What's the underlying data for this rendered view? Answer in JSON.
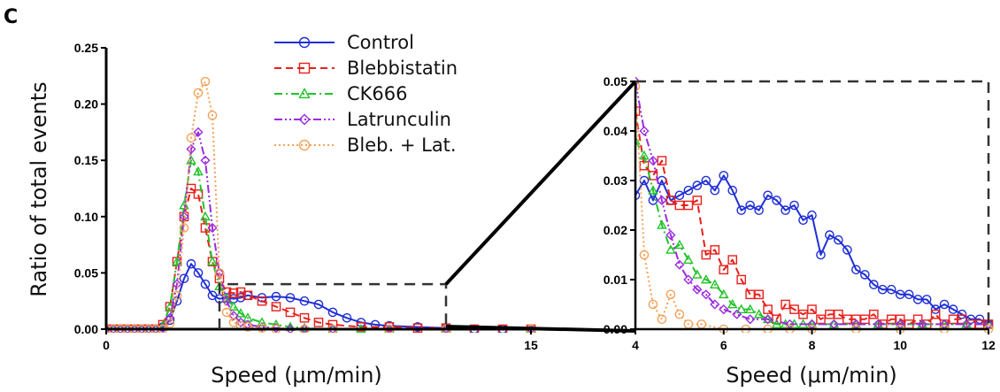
{
  "panel_label": "C",
  "legend": [
    {
      "name": "Control",
      "color": "#1f2fd6",
      "marker": "circle",
      "dash": "solid"
    },
    {
      "name": "Blebbistatin",
      "color": "#e8201b",
      "marker": "square",
      "dash": "dashed"
    },
    {
      "name": "CK666",
      "color": "#22c32a",
      "marker": "triangle",
      "dash": "dashdot"
    },
    {
      "name": "Latrunculin",
      "color": "#9b2be0",
      "marker": "diamond",
      "dash": "dashdotdot"
    },
    {
      "name": "Bleb. + Lat.",
      "color": "#f4a259",
      "marker": "circle",
      "dash": "dotted"
    }
  ],
  "chart_data": [
    {
      "type": "scatter",
      "title": "",
      "xlabel": "Speed (μm/min)",
      "ylabel": "Ratio of total events",
      "xlim": [
        0,
        15
      ],
      "ylim": [
        0,
        0.25
      ],
      "xticks": [
        {
          "v": 0,
          "label": "0"
        },
        {
          "v": 15,
          "label": "15"
        }
      ],
      "yticks": [
        {
          "v": 0,
          "label": "0.00"
        },
        {
          "v": 0.05,
          "label": "0.05"
        },
        {
          "v": 0.1,
          "label": "0.10"
        },
        {
          "v": 0.15,
          "label": "0.15"
        },
        {
          "v": 0.2,
          "label": "0.20"
        },
        {
          "v": 0.25,
          "label": "0.25"
        }
      ],
      "grid": false,
      "legend_position": "top-center",
      "zoom_box": {
        "x": [
          4,
          12
        ],
        "y": [
          0,
          0.04
        ]
      },
      "series": [
        {
          "name": "Control",
          "x": [
            0,
            0.25,
            0.5,
            0.75,
            1,
            1.25,
            1.5,
            1.75,
            2,
            2.25,
            2.5,
            2.75,
            3,
            3.25,
            3.5,
            3.75,
            4,
            4.25,
            4.5,
            4.75,
            5,
            5.5,
            6,
            6.5,
            7,
            7.5,
            8,
            8.5,
            9,
            9.5,
            10,
            11,
            12,
            13,
            14,
            15
          ],
          "y": [
            0,
            0,
            0,
            0,
            0,
            0,
            0,
            0,
            0.002,
            0.008,
            0.025,
            0.045,
            0.058,
            0.05,
            0.04,
            0.03,
            0.027,
            0.028,
            0.027,
            0.028,
            0.03,
            0.028,
            0.029,
            0.028,
            0.025,
            0.022,
            0.015,
            0.01,
            0.006,
            0.004,
            0.003,
            0.002,
            0.001,
            0,
            0,
            0
          ]
        },
        {
          "name": "Blebbistatin",
          "x": [
            0,
            0.25,
            0.5,
            0.75,
            1,
            1.25,
            1.5,
            1.75,
            2,
            2.25,
            2.5,
            2.75,
            3,
            3.25,
            3.5,
            3.75,
            4,
            4.25,
            4.5,
            4.75,
            5,
            5.5,
            6,
            6.5,
            7,
            7.5,
            8,
            9,
            10,
            11,
            12,
            13,
            14,
            15
          ],
          "y": [
            0,
            0,
            0,
            0,
            0,
            0,
            0,
            0,
            0.004,
            0.02,
            0.06,
            0.1,
            0.125,
            0.12,
            0.09,
            0.06,
            0.045,
            0.033,
            0.032,
            0.033,
            0.03,
            0.025,
            0.02,
            0.015,
            0.01,
            0.006,
            0.004,
            0.002,
            0.002,
            0.001,
            0.001,
            0,
            0,
            0
          ]
        },
        {
          "name": "CK666",
          "x": [
            0,
            0.25,
            0.5,
            0.75,
            1,
            1.25,
            1.5,
            1.75,
            2,
            2.25,
            2.5,
            2.75,
            3,
            3.25,
            3.5,
            3.75,
            4,
            4.25,
            4.5,
            4.75,
            5,
            5.5,
            6,
            6.5,
            7,
            8,
            9,
            10,
            12,
            15
          ],
          "y": [
            0,
            0,
            0,
            0,
            0,
            0,
            0,
            0,
            0.003,
            0.02,
            0.06,
            0.11,
            0.15,
            0.14,
            0.1,
            0.06,
            0.038,
            0.027,
            0.02,
            0.014,
            0.01,
            0.006,
            0.004,
            0.002,
            0.001,
            0,
            0,
            0,
            0,
            0
          ]
        },
        {
          "name": "Latrunculin",
          "x": [
            0,
            0.25,
            0.5,
            0.75,
            1,
            1.25,
            1.5,
            1.75,
            2,
            2.25,
            2.5,
            2.75,
            3,
            3.25,
            3.5,
            3.75,
            4,
            4.25,
            4.5,
            4.75,
            5,
            5.5,
            6,
            6.5,
            7,
            8,
            10,
            12,
            15
          ],
          "y": [
            0,
            0,
            0,
            0,
            0,
            0,
            0,
            0,
            0.001,
            0.01,
            0.04,
            0.1,
            0.16,
            0.175,
            0.15,
            0.09,
            0.05,
            0.025,
            0.012,
            0.006,
            0.004,
            0.002,
            0.001,
            0,
            0,
            0,
            0,
            0,
            0
          ]
        },
        {
          "name": "Bleb. + Lat.",
          "x": [
            0,
            0.25,
            0.5,
            0.75,
            1,
            1.25,
            1.5,
            1.75,
            2,
            2.25,
            2.5,
            2.75,
            3,
            3.25,
            3.5,
            3.75,
            4,
            4.25,
            4.5,
            4.75,
            5,
            5.5,
            6,
            7,
            8,
            10,
            12,
            15
          ],
          "y": [
            0,
            0,
            0,
            0,
            0,
            0,
            0,
            0,
            0,
            0.005,
            0.03,
            0.09,
            0.17,
            0.21,
            0.22,
            0.19,
            0.05,
            0.015,
            0.006,
            0.003,
            0.002,
            0.001,
            0,
            0,
            0,
            0,
            0,
            0
          ]
        }
      ]
    },
    {
      "type": "scatter",
      "title": "",
      "xlabel": "Speed (μm/min)",
      "ylabel": "",
      "xlim": [
        4,
        12
      ],
      "ylim": [
        0,
        0.05
      ],
      "xticks": [
        {
          "v": 4,
          "label": "4"
        },
        {
          "v": 6,
          "label": "6"
        },
        {
          "v": 8,
          "label": "8"
        },
        {
          "v": 10,
          "label": "10"
        },
        {
          "v": 12,
          "label": "12"
        }
      ],
      "yticks": [
        {
          "v": 0,
          "label": "0.00"
        },
        {
          "v": 0.01,
          "label": "0.01"
        },
        {
          "v": 0.02,
          "label": "0.02"
        },
        {
          "v": 0.03,
          "label": "0.03"
        },
        {
          "v": 0.04,
          "label": "0.04"
        },
        {
          "v": 0.05,
          "label": "0.05"
        }
      ],
      "grid": false,
      "series": [
        {
          "name": "Control",
          "x": [
            4,
            4.2,
            4.4,
            4.6,
            4.8,
            5,
            5.2,
            5.4,
            5.6,
            5.8,
            6,
            6.2,
            6.4,
            6.6,
            6.8,
            7,
            7.2,
            7.4,
            7.6,
            7.8,
            8,
            8.2,
            8.4,
            8.6,
            8.8,
            9,
            9.2,
            9.4,
            9.6,
            9.8,
            10,
            10.2,
            10.4,
            10.6,
            10.8,
            11,
            11.2,
            11.4,
            11.6,
            11.8,
            12
          ],
          "y": [
            0.027,
            0.03,
            0.026,
            0.03,
            0.026,
            0.027,
            0.028,
            0.029,
            0.03,
            0.028,
            0.031,
            0.028,
            0.024,
            0.025,
            0.024,
            0.027,
            0.026,
            0.024,
            0.025,
            0.022,
            0.023,
            0.015,
            0.019,
            0.018,
            0.016,
            0.012,
            0.011,
            0.009,
            0.008,
            0.008,
            0.007,
            0.007,
            0.006,
            0.006,
            0.004,
            0.005,
            0.004,
            0.003,
            0.002,
            0.002,
            0.001
          ]
        },
        {
          "name": "Blebbistatin",
          "x": [
            4,
            4.2,
            4.4,
            4.6,
            4.8,
            5,
            5.2,
            5.4,
            5.6,
            5.8,
            6,
            6.2,
            6.4,
            6.6,
            6.8,
            7,
            7.2,
            7.4,
            7.6,
            7.8,
            8,
            8.2,
            8.4,
            8.6,
            8.8,
            9,
            9.2,
            9.4,
            9.6,
            9.8,
            10,
            10.2,
            10.4,
            10.6,
            10.8,
            11,
            11.2,
            11.4,
            11.6,
            11.8,
            12
          ],
          "y": [
            0.044,
            0.033,
            0.031,
            0.034,
            0.026,
            0.025,
            0.025,
            0.026,
            0.015,
            0.016,
            0.012,
            0.014,
            0.01,
            0.007,
            0.007,
            0.004,
            0.002,
            0.005,
            0.004,
            0.003,
            0.004,
            0.002,
            0.003,
            0.003,
            0.002,
            0.002,
            0.002,
            0.003,
            0.001,
            0.002,
            0.002,
            0.001,
            0.002,
            0.001,
            0.003,
            0.001,
            0.002,
            0.002,
            0.001,
            0.001,
            0.001
          ]
        },
        {
          "name": "CK666",
          "x": [
            4,
            4.2,
            4.4,
            4.6,
            4.8,
            5,
            5.2,
            5.4,
            5.6,
            5.8,
            6,
            6.2,
            6.4,
            6.6,
            6.8,
            7,
            7.2,
            7.4,
            7.6,
            7.8,
            8,
            8.5,
            9,
            9.5,
            10,
            10.5,
            11,
            11.5,
            12
          ],
          "y": [
            0.038,
            0.035,
            0.028,
            0.021,
            0.016,
            0.017,
            0.014,
            0.011,
            0.01,
            0.009,
            0.007,
            0.005,
            0.004,
            0.004,
            0.003,
            0.002,
            0.001,
            0.001,
            0.001,
            0.001,
            0.001,
            0.001,
            0.001,
            0.001,
            0.001,
            0.001,
            0.001,
            0.001,
            0.001
          ]
        },
        {
          "name": "Latrunculin",
          "x": [
            4,
            4.2,
            4.4,
            4.6,
            4.8,
            5,
            5.2,
            5.4,
            5.6,
            5.8,
            6,
            6.3,
            6.6,
            7,
            7.5,
            8,
            8.5,
            9,
            9.5,
            10,
            10.5,
            11,
            11.5,
            12
          ],
          "y": [
            0.05,
            0.04,
            0.034,
            0.026,
            0.019,
            0.013,
            0.01,
            0.008,
            0.007,
            0.005,
            0.004,
            0.003,
            0.002,
            0.002,
            0.001,
            0.001,
            0.001,
            0.001,
            0.001,
            0.001,
            0.001,
            0.001,
            0.001,
            0.001
          ]
        },
        {
          "name": "Bleb. + Lat.",
          "x": [
            4,
            4.2,
            4.4,
            4.6,
            4.8,
            5,
            5.2,
            5.5,
            6,
            6.5,
            7,
            7.5,
            8,
            9,
            10,
            11,
            12
          ],
          "y": [
            0.049,
            0.015,
            0.005,
            0.002,
            0.007,
            0.003,
            0.001,
            0.001,
            0,
            0,
            0,
            0,
            0,
            0,
            0,
            0,
            0
          ]
        }
      ]
    }
  ]
}
